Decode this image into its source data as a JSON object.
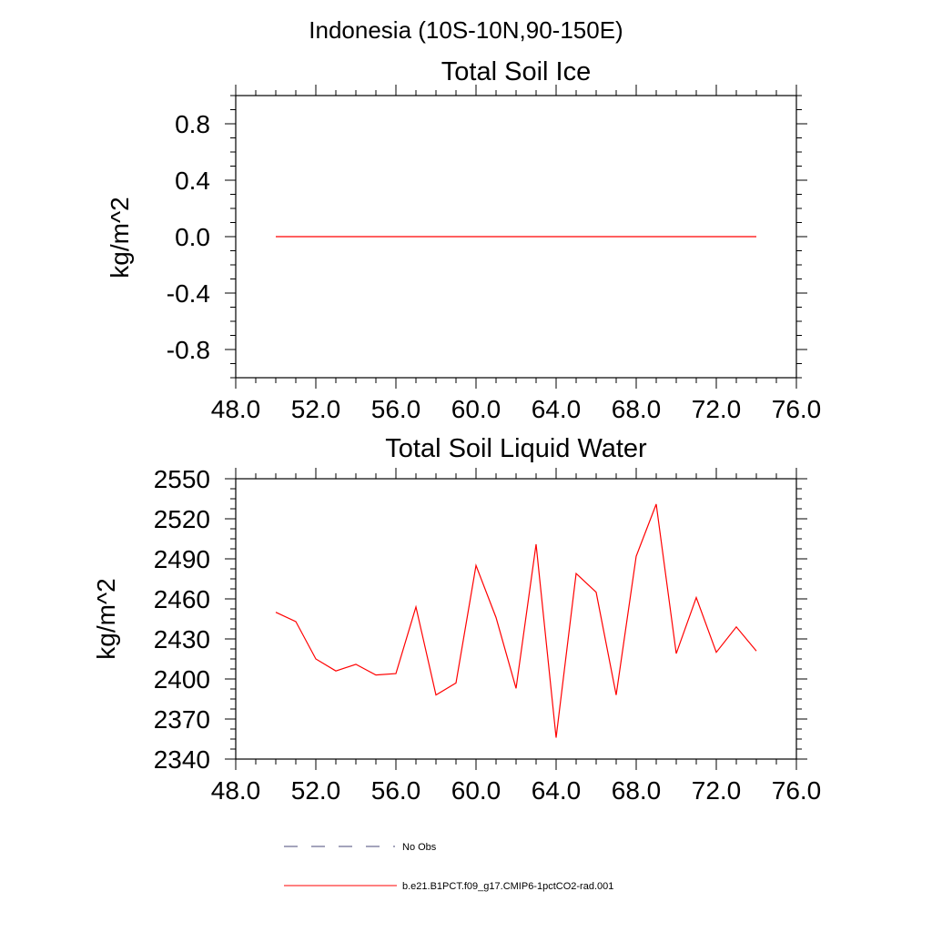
{
  "figure": {
    "suptitle": "Indonesia (10S-10N,90-150E)"
  },
  "legend": {
    "entries": [
      {
        "label": "No Obs",
        "color": "#4a4a7a",
        "style": "dashed"
      },
      {
        "label": "b.e21.B1PCT.f09_g17.CMIP6-1pctCO2-rad.001",
        "color": "#ff0000",
        "style": "solid"
      }
    ]
  },
  "chart_data": [
    {
      "type": "line",
      "title": "Total Soil Ice",
      "ylabel": "kg/m^2",
      "xlabel": "",
      "xlim": [
        48,
        76
      ],
      "ylim": [
        -1.0,
        1.0
      ],
      "xticks": [
        48,
        52,
        56,
        60,
        64,
        68,
        72,
        76
      ],
      "xtick_labels": [
        "48.0",
        "52.0",
        "56.0",
        "60.0",
        "64.0",
        "68.0",
        "72.0",
        "76.0"
      ],
      "yticks": [
        -0.8,
        -0.4,
        0.0,
        0.4,
        0.8
      ],
      "ytick_labels": [
        "-0.8",
        "-0.4",
        "0.0",
        "0.4",
        "0.8"
      ],
      "grid": false,
      "series": [
        {
          "color": "#ff0000",
          "x": [
            50,
            51,
            52,
            53,
            54,
            55,
            56,
            57,
            58,
            59,
            60,
            61,
            62,
            63,
            64,
            65,
            66,
            67,
            68,
            69,
            70,
            71,
            72,
            73,
            74
          ],
          "y": [
            0,
            0,
            0,
            0,
            0,
            0,
            0,
            0,
            0,
            0,
            0,
            0,
            0,
            0,
            0,
            0,
            0,
            0,
            0,
            0,
            0,
            0,
            0,
            0,
            0
          ]
        }
      ]
    },
    {
      "type": "line",
      "title": "Total Soil Liquid Water",
      "ylabel": "kg/m^2",
      "xlabel": "",
      "xlim": [
        48,
        76
      ],
      "ylim": [
        2340,
        2550
      ],
      "xticks": [
        48,
        52,
        56,
        60,
        64,
        68,
        72,
        76
      ],
      "xtick_labels": [
        "48.0",
        "52.0",
        "56.0",
        "60.0",
        "64.0",
        "68.0",
        "72.0",
        "76.0"
      ],
      "yticks": [
        2340,
        2370,
        2400,
        2430,
        2460,
        2490,
        2520,
        2550
      ],
      "ytick_labels": [
        "2340",
        "2370",
        "2400",
        "2430",
        "2460",
        "2490",
        "2520",
        "2550"
      ],
      "grid": false,
      "series": [
        {
          "color": "#ff0000",
          "x": [
            50,
            51,
            52,
            53,
            54,
            55,
            56,
            57,
            58,
            59,
            60,
            61,
            62,
            63,
            64,
            65,
            66,
            67,
            68,
            69,
            70,
            71,
            72,
            73,
            74
          ],
          "y": [
            2450,
            2443,
            2415,
            2406,
            2411,
            2403,
            2404,
            2454,
            2388,
            2397,
            2485,
            2446,
            2393,
            2501,
            2356,
            2479,
            2465,
            2388,
            2492,
            2531,
            2419,
            2461,
            2420,
            2439,
            2421
          ]
        }
      ]
    }
  ]
}
